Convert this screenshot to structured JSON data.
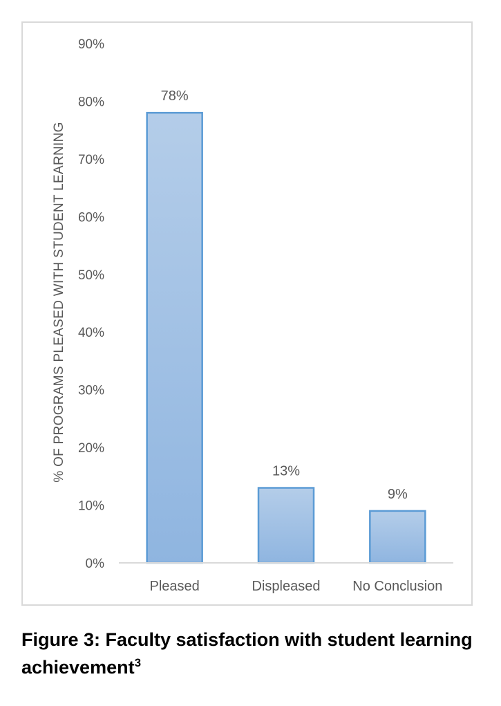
{
  "chart_data": {
    "type": "bar",
    "categories": [
      "Pleased",
      "Displeased",
      "No Conclusion"
    ],
    "values": [
      78,
      13,
      9
    ],
    "value_labels": [
      "78%",
      "13%",
      "9%"
    ],
    "ylabel": "% OF PROGRAMS PLEASED WITH STUDENT LEARNING",
    "xlabel": "",
    "ylim": [
      0,
      90
    ],
    "yticks": [
      "0%",
      "10%",
      "20%",
      "30%",
      "40%",
      "50%",
      "60%",
      "70%",
      "80%",
      "90%"
    ],
    "grid": false,
    "legend": "none",
    "colors": {
      "bar_fill_top": "#b4cde9",
      "bar_fill_bottom": "#8fb5e0",
      "bar_border": "#5b9bd5",
      "text": "#595959",
      "axis": "#d9d9d9"
    }
  },
  "caption": {
    "text": "Figure 3: Faculty satisfaction with student learning achievement",
    "superscript": "3"
  }
}
